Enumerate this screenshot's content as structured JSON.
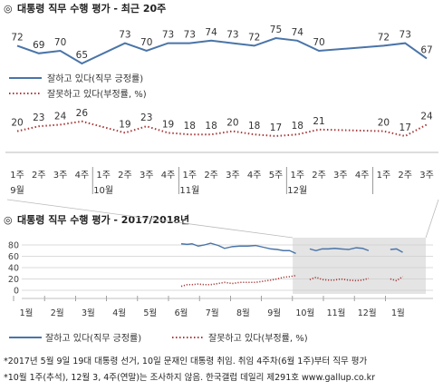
{
  "chart_data": [
    {
      "type": "line",
      "title": "대통령 직무 수행 평가 - 최근 20주",
      "title_symbol": "◎",
      "categories": [
        [
          "1주",
          "9월"
        ],
        [
          "2주",
          ""
        ],
        [
          "3주",
          ""
        ],
        [
          "4주",
          ""
        ],
        [
          "1주",
          "10월"
        ],
        [
          "2주",
          ""
        ],
        [
          "3주",
          ""
        ],
        [
          "4주",
          ""
        ],
        [
          "1주",
          "11월"
        ],
        [
          "2주",
          ""
        ],
        [
          "3주",
          ""
        ],
        [
          "4주",
          ""
        ],
        [
          "5주",
          ""
        ],
        [
          "1주",
          "12월"
        ],
        [
          "2주",
          ""
        ],
        [
          "3주",
          ""
        ],
        [
          "4주",
          ""
        ],
        [
          "1주",
          ""
        ],
        [
          "2주",
          ""
        ],
        [
          "3주",
          ""
        ]
      ],
      "series": [
        {
          "name": "잘하고 있다(직무 긍정률)",
          "color": "#4a74a8",
          "style": "solid",
          "values": [
            72,
            69,
            70,
            65,
            null,
            73,
            70,
            73,
            73,
            74,
            73,
            72,
            75,
            74,
            70,
            null,
            null,
            72,
            73,
            67
          ],
          "connect_all": true
        },
        {
          "name": "잘못하고 있다(부정률, %)",
          "color": "#a83a3a",
          "style": "dotted",
          "values": [
            20,
            23,
            24,
            26,
            null,
            19,
            23,
            19,
            18,
            18,
            20,
            18,
            17,
            18,
            21,
            null,
            null,
            20,
            17,
            24
          ],
          "connect_all": true
        }
      ],
      "grid": false,
      "legend": "top-left"
    },
    {
      "type": "line",
      "title": "대통령 직무 수행 평가 - 2017/2018년",
      "title_symbol": "◎",
      "ylim": [
        0,
        80
      ],
      "yticks": [
        0,
        20,
        40,
        60,
        80
      ],
      "months": [
        "1월",
        "2월",
        "3월",
        "4월",
        "5월",
        "6월",
        "7월",
        "8월",
        "9월",
        "10월",
        "11월",
        "12월",
        "1월"
      ],
      "highlight": "recent 20 weeks",
      "series": [
        {
          "name": "잘하고 있다(직무 긍정률)",
          "color": "#4a74a8",
          "style": "solid",
          "points": [
            [
              5.0,
              82
            ],
            [
              5.2,
              81
            ],
            [
              5.35,
              82
            ],
            [
              5.55,
              78
            ],
            [
              5.75,
              80
            ],
            [
              5.95,
              83
            ],
            [
              6.2,
              79
            ],
            [
              6.4,
              74
            ],
            [
              6.65,
              77
            ],
            [
              6.9,
              78
            ],
            [
              7.15,
              78
            ],
            [
              7.4,
              79
            ],
            [
              7.65,
              76
            ],
            [
              7.9,
              73
            ],
            [
              8.1,
              72
            ],
            [
              8.3,
              70
            ],
            [
              8.5,
              70
            ],
            [
              8.7,
              65
            ],
            [
              9.15,
              73
            ],
            [
              9.35,
              70
            ],
            [
              9.55,
              73
            ],
            [
              9.75,
              73
            ],
            [
              9.95,
              74
            ],
            [
              10.15,
              73
            ],
            [
              10.4,
              72
            ],
            [
              10.65,
              75
            ],
            [
              10.85,
              74
            ],
            [
              11.05,
              70
            ],
            [
              11.75,
              72
            ],
            [
              11.95,
              73
            ],
            [
              12.15,
              67
            ]
          ]
        },
        {
          "name": "잘못하고 있다(부정률, %)",
          "color": "#a83a3a",
          "style": "dotted",
          "points": [
            [
              5.0,
              7
            ],
            [
              5.2,
              10
            ],
            [
              5.35,
              10
            ],
            [
              5.55,
              11
            ],
            [
              5.75,
              10
            ],
            [
              5.95,
              10
            ],
            [
              6.2,
              12
            ],
            [
              6.4,
              14
            ],
            [
              6.65,
              12
            ],
            [
              6.9,
              14
            ],
            [
              7.15,
              14
            ],
            [
              7.4,
              14
            ],
            [
              7.65,
              16
            ],
            [
              7.9,
              18
            ],
            [
              8.1,
              20
            ],
            [
              8.3,
              23
            ],
            [
              8.5,
              24
            ],
            [
              8.7,
              26
            ],
            [
              9.15,
              19
            ],
            [
              9.35,
              23
            ],
            [
              9.55,
              19
            ],
            [
              9.75,
              18
            ],
            [
              9.95,
              18
            ],
            [
              10.15,
              20
            ],
            [
              10.4,
              18
            ],
            [
              10.65,
              17
            ],
            [
              10.85,
              18
            ],
            [
              11.05,
              21
            ],
            [
              11.75,
              20
            ],
            [
              11.95,
              17
            ],
            [
              12.15,
              24
            ]
          ]
        }
      ],
      "grid": true,
      "legend": "bottom"
    }
  ],
  "notes": [
    "*2017년 5월 9일 19대 대통령 선거, 10일 문재인 대통령 취임. 취임 4주차(6월 1주)부터 직무 평가",
    "*10월 1주(추석), 12월 3, 4주(연말)는 조사하지 않음. 한국갤럽 데일리 제291호 www.gallup.co.kr"
  ]
}
